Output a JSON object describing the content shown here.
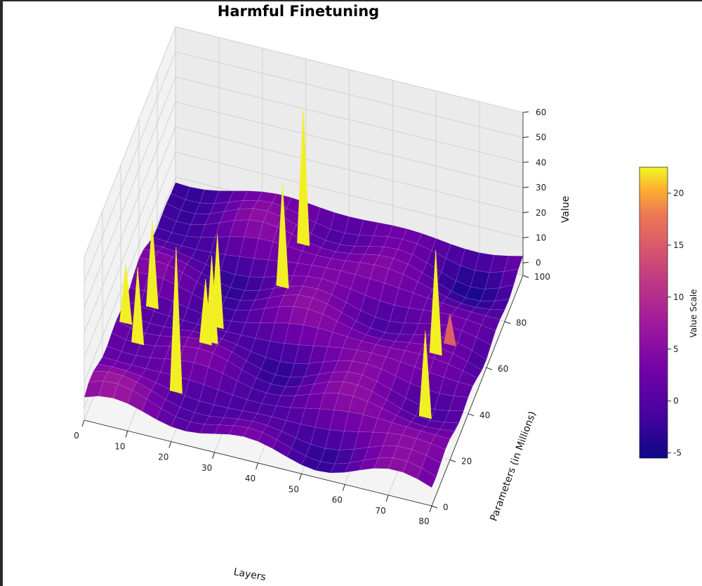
{
  "chart_data": {
    "type": "surface3d",
    "title": "Harmful Finetuning",
    "xlabel": "Layers",
    "ylabel": "Parameters (in Millions)",
    "zlabel": "Value",
    "colorbar_label": "Value Scale",
    "colormap": "plasma",
    "xlim": [
      0,
      80
    ],
    "ylim": [
      0,
      100
    ],
    "zlim": [
      -5,
      60
    ],
    "x_ticks": [
      "0",
      "10",
      "20",
      "30",
      "40",
      "50",
      "60",
      "70",
      "80"
    ],
    "y_ticks": [
      "0",
      "20",
      "40",
      "60",
      "80",
      "100"
    ],
    "z_ticks": [
      "0",
      "10",
      "20",
      "30",
      "40",
      "50",
      "60"
    ],
    "colorbar_ticks": [
      "-5",
      "0",
      "5",
      "10",
      "15",
      "20"
    ],
    "colorbar_range": [
      -5.5,
      22.5
    ],
    "grid": true,
    "surface_base_range": [
      -5,
      8
    ],
    "spikes": [
      {
        "x": 2,
        "y": 36,
        "value": 25
      },
      {
        "x": 6,
        "y": 30,
        "value": 31
      },
      {
        "x": 6,
        "y": 46,
        "value": 35
      },
      {
        "x": 18,
        "y": 15,
        "value": 58
      },
      {
        "x": 21,
        "y": 33,
        "value": 30
      },
      {
        "x": 22,
        "y": 35,
        "value": 38
      },
      {
        "x": 21,
        "y": 46,
        "value": 36
      },
      {
        "x": 32,
        "y": 65,
        "value": 43
      },
      {
        "x": 33,
        "y": 83,
        "value": 57
      },
      {
        "x": 72,
        "y": 31,
        "value": 33
      },
      {
        "x": 70,
        "y": 52,
        "value": 45
      },
      {
        "x": 72,
        "y": 58,
        "value": 15
      }
    ]
  }
}
